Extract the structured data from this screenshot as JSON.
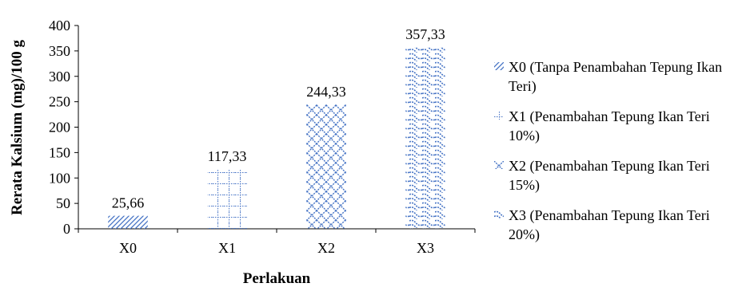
{
  "chart_data": {
    "type": "bar",
    "categories": [
      "X0",
      "X1",
      "X2",
      "X3"
    ],
    "values": [
      25.66,
      117.33,
      244.33,
      357.33
    ],
    "value_labels": [
      "25,66",
      "117,33",
      "244,33",
      "357,33"
    ],
    "xlabel": "Perlakuan",
    "ylabel": "Rerata Kalsium (mg)/100 g",
    "ylim": [
      0,
      400
    ],
    "yticks": [
      0,
      50,
      100,
      150,
      200,
      250,
      300,
      350,
      400
    ],
    "grid": false,
    "legend_position": "right",
    "bar_color": "#4472C4",
    "legend": [
      {
        "label": "X0 (Tanpa Penambahan Tepung Ikan Teri)",
        "pattern": "diagonal-hatch"
      },
      {
        "label": "X1 (Penambahan Tepung Ikan Teri 10%)",
        "pattern": "dotted-grid"
      },
      {
        "label": "X2 (Penambahan Tepung Ikan Teri 15%)",
        "pattern": "diamond-lattice"
      },
      {
        "label": "X3 (Penambahan Tepung Ikan Teri 20%)",
        "pattern": "wave"
      }
    ]
  }
}
